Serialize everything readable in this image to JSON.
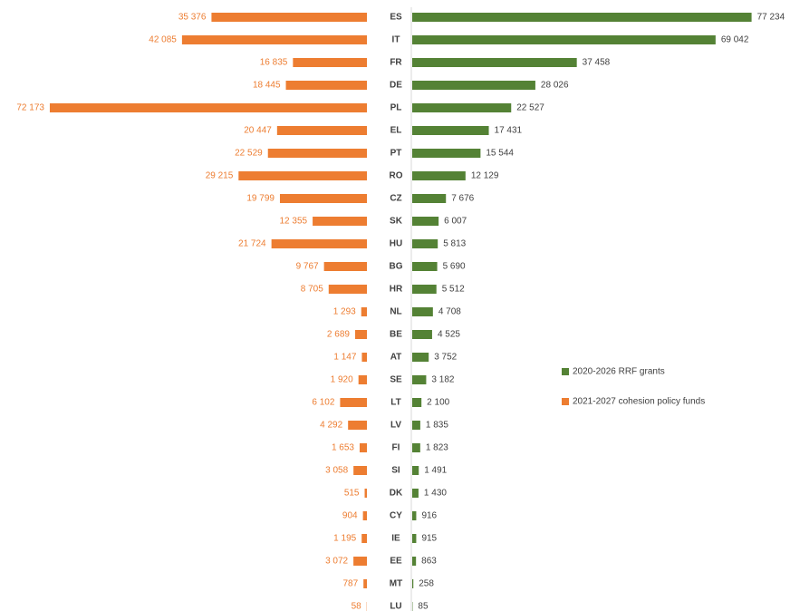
{
  "chart_data": {
    "type": "butterfly-bar",
    "categories": [
      "ES",
      "IT",
      "FR",
      "DE",
      "PL",
      "EL",
      "PT",
      "RO",
      "CZ",
      "SK",
      "HU",
      "BG",
      "HR",
      "NL",
      "BE",
      "AT",
      "SE",
      "LT",
      "LV",
      "FI",
      "SI",
      "DK",
      "CY",
      "IE",
      "EE",
      "MT",
      "LU"
    ],
    "series": [
      {
        "name": "2020-2026 RRF grants",
        "color": "#548235",
        "side": "right",
        "values": [
          77234,
          69042,
          37458,
          28026,
          22527,
          17431,
          15544,
          12129,
          7676,
          6007,
          5813,
          5690,
          5512,
          4708,
          4525,
          3752,
          3182,
          2100,
          1835,
          1823,
          1491,
          1430,
          916,
          915,
          863,
          258,
          85
        ],
        "value_labels": [
          "77 234",
          "69 042",
          "37 458",
          "28 026",
          "22 527",
          "17 431",
          "15 544",
          "12 129",
          "7 676",
          "6 007",
          "5 813",
          "5 690",
          "5 512",
          "4 708",
          "4 525",
          "3 752",
          "3 182",
          "2 100",
          "1 835",
          "1 823",
          "1 491",
          "1 430",
          "916",
          "915",
          "863",
          "258",
          "85"
        ]
      },
      {
        "name": "2021-2027 cohesion policy funds",
        "color": "#ed7d31",
        "side": "left",
        "values": [
          35376,
          42085,
          16835,
          18445,
          72173,
          20447,
          22529,
          29215,
          19799,
          12355,
          21724,
          9767,
          8705,
          1293,
          2689,
          1147,
          1920,
          6102,
          4292,
          1653,
          3058,
          515,
          904,
          1195,
          3072,
          787,
          58
        ],
        "value_labels": [
          "35 376",
          "42 085",
          "16 835",
          "18 445",
          "72 173",
          "20 447",
          "22 529",
          "29 215",
          "19 799",
          "12 355",
          "21 724",
          "9 767",
          "8 705",
          "1 293",
          "2 689",
          "1 147",
          "1 920",
          "6 102",
          "4 292",
          "1 653",
          "3 058",
          "515",
          "904",
          "1 195",
          "3 072",
          "787",
          "58"
        ]
      }
    ],
    "xlim": [
      0,
      80000
    ],
    "legend": "right"
  }
}
